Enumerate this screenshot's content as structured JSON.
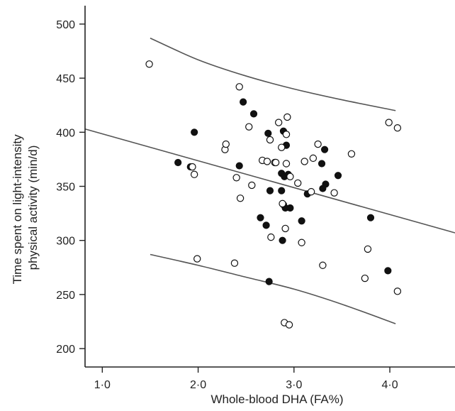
{
  "chart_data": {
    "type": "scatter",
    "title": "",
    "xlabel": "Whole-blood DHA (FA%)",
    "ylabel_lines": [
      "Time spent on light-intensity",
      "physical activity (min/d)"
    ],
    "xlim": [
      0.82,
      4.68
    ],
    "ylim": [
      183,
      517
    ],
    "x_ticks": [
      1.0,
      2.0,
      3.0,
      4.0
    ],
    "x_tick_labels": [
      "1·0",
      "2·0",
      "3·0",
      "4·0"
    ],
    "y_ticks": [
      200,
      250,
      300,
      350,
      400,
      450,
      500
    ],
    "y_tick_labels": [
      "200",
      "250",
      "300",
      "350",
      "400",
      "450",
      "500"
    ],
    "grid": false,
    "legend": "none",
    "colors": {
      "line": "#555555",
      "marker": "#111111",
      "axis": "#222222"
    },
    "series": [
      {
        "marker": "filled-circle",
        "points": [
          [
            1.79,
            372
          ],
          [
            1.92,
            368
          ],
          [
            1.96,
            400
          ],
          [
            2.43,
            369
          ],
          [
            2.47,
            428
          ],
          [
            2.58,
            417
          ],
          [
            2.65,
            321
          ],
          [
            2.71,
            314
          ],
          [
            2.73,
            399
          ],
          [
            2.74,
            262
          ],
          [
            2.75,
            346
          ],
          [
            2.87,
            362
          ],
          [
            2.87,
            346
          ],
          [
            2.88,
            300
          ],
          [
            2.89,
            333
          ],
          [
            2.89,
            401
          ],
          [
            2.9,
            359
          ],
          [
            2.91,
            330
          ],
          [
            2.92,
            388
          ],
          [
            2.94,
            361
          ],
          [
            2.96,
            330
          ],
          [
            3.08,
            318
          ],
          [
            3.14,
            343
          ],
          [
            3.29,
            371
          ],
          [
            3.3,
            348
          ],
          [
            3.32,
            384
          ],
          [
            3.33,
            352
          ],
          [
            3.46,
            360
          ],
          [
            3.8,
            321
          ],
          [
            3.98,
            272
          ]
        ]
      },
      {
        "marker": "open-circle",
        "points": [
          [
            1.49,
            463
          ],
          [
            1.94,
            368
          ],
          [
            1.96,
            361
          ],
          [
            1.99,
            283
          ],
          [
            2.28,
            384
          ],
          [
            2.29,
            389
          ],
          [
            2.38,
            279
          ],
          [
            2.4,
            358
          ],
          [
            2.43,
            442
          ],
          [
            2.44,
            339
          ],
          [
            2.53,
            405
          ],
          [
            2.56,
            351
          ],
          [
            2.67,
            374
          ],
          [
            2.72,
            373
          ],
          [
            2.75,
            393
          ],
          [
            2.76,
            303
          ],
          [
            2.8,
            372
          ],
          [
            2.81,
            372
          ],
          [
            2.84,
            409
          ],
          [
            2.87,
            386
          ],
          [
            2.88,
            334
          ],
          [
            2.9,
            224
          ],
          [
            2.91,
            311
          ],
          [
            2.92,
            398
          ],
          [
            2.92,
            371
          ],
          [
            2.93,
            414
          ],
          [
            2.95,
            222
          ],
          [
            2.96,
            359
          ],
          [
            3.04,
            353
          ],
          [
            3.08,
            298
          ],
          [
            3.11,
            373
          ],
          [
            3.18,
            345
          ],
          [
            3.2,
            376
          ],
          [
            3.25,
            389
          ],
          [
            3.3,
            277
          ],
          [
            3.42,
            344
          ],
          [
            3.6,
            380
          ],
          [
            3.74,
            265
          ],
          [
            3.77,
            292
          ],
          [
            3.99,
            409
          ],
          [
            4.08,
            404
          ],
          [
            4.08,
            253
          ]
        ]
      }
    ],
    "regression_line": {
      "x": [
        0.82,
        4.68
      ],
      "y": [
        403,
        307
      ]
    },
    "prediction_bands": [
      {
        "x": [
          1.5,
          2.0,
          2.5,
          3.0,
          3.5,
          4.06
        ],
        "y": [
          487,
          467,
          452,
          440,
          430,
          420
        ]
      },
      {
        "x": [
          1.5,
          2.0,
          2.5,
          3.0,
          3.5,
          4.06
        ],
        "y": [
          287,
          277,
          266,
          255,
          241,
          223
        ]
      }
    ]
  }
}
